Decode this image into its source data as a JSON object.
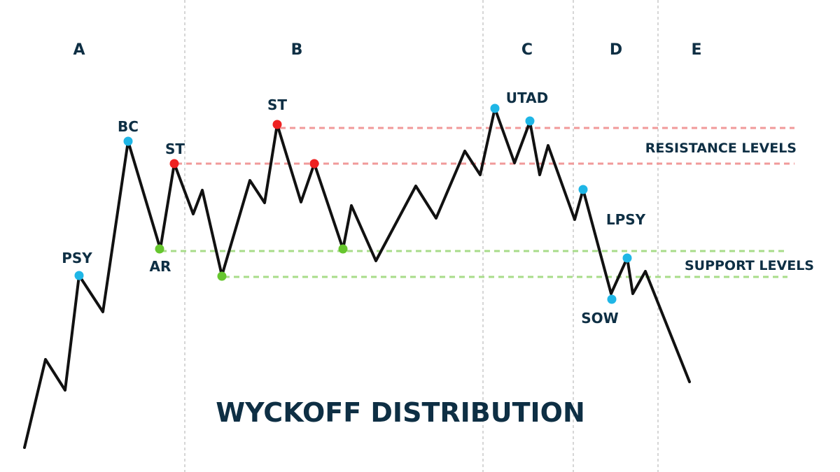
{
  "title": "WYCKOFF DISTRIBUTION",
  "phases": [
    "A",
    "B",
    "C",
    "D",
    "E"
  ],
  "levels": {
    "resistance_label": "RESISTANCE LEVELS",
    "support_label": "SUPPORT LEVELS"
  },
  "points": [
    {
      "label": "PSY",
      "color": "#1fb6e6"
    },
    {
      "label": "BC",
      "color": "#1fb6e6"
    },
    {
      "label": "AR",
      "color": "#66c62e"
    },
    {
      "label": "ST",
      "color": "#ee2222"
    },
    {
      "label": "",
      "color": "#66c62e"
    },
    {
      "label": "ST",
      "color": "#ee2222"
    },
    {
      "label": "",
      "color": "#ee2222"
    },
    {
      "label": "",
      "color": "#66c62e"
    },
    {
      "label": "UTAD",
      "color": "#1fb6e6"
    },
    {
      "label": "",
      "color": "#1fb6e6"
    },
    {
      "label": "",
      "color": "#1fb6e6"
    },
    {
      "label": "SOW",
      "color": "#1fb6e6"
    },
    {
      "label": "LPSY",
      "color": "#1fb6e6"
    }
  ],
  "colors": {
    "text": "#0e2f44",
    "price_line": "#111111",
    "resistance": "#f19a9a",
    "support": "#a8dc8a",
    "divider": "#bbbbbb"
  }
}
